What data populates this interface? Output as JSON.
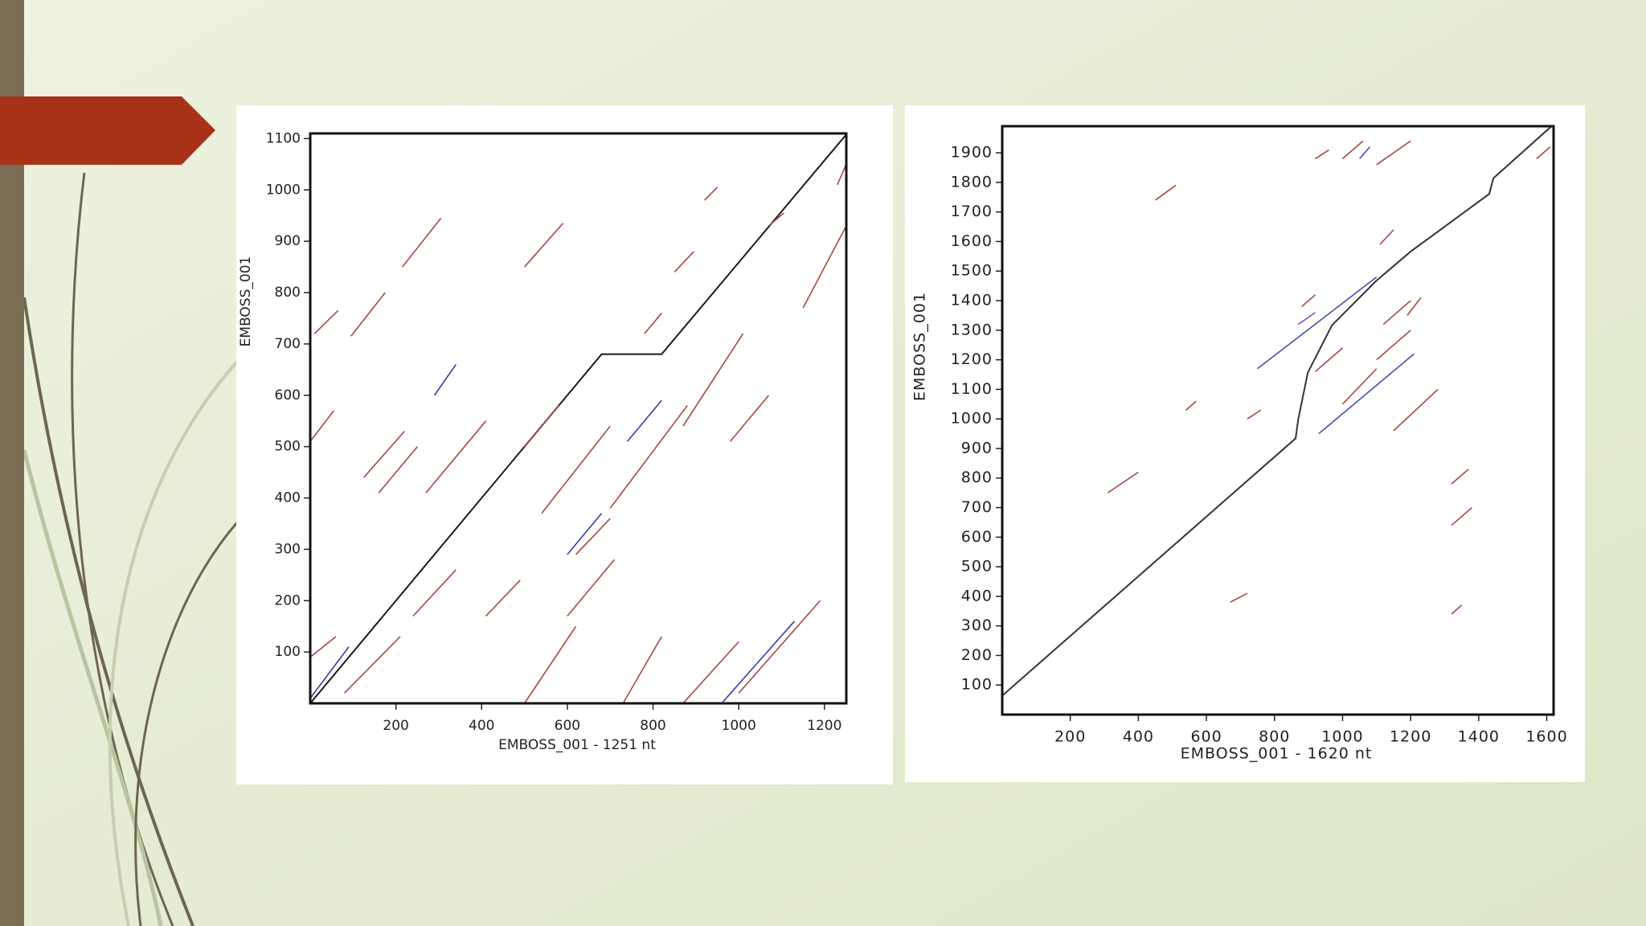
{
  "chart_data": [
    {
      "type": "line",
      "xlabel": "EMBOSS_001 - 1251 nt",
      "ylabel": "EMBOSS_001",
      "xlim": [
        0,
        1251
      ],
      "ylim": [
        0,
        1110
      ],
      "xticks": [
        200,
        400,
        600,
        800,
        1000,
        1200
      ],
      "yticks": [
        100,
        200,
        300,
        400,
        500,
        600,
        700,
        800,
        900,
        1000,
        1100
      ],
      "series": [
        {
          "color": "#1a1a1a",
          "x": [
            0,
            680,
            820,
            1251
          ],
          "values": [
            0,
            680,
            680,
            1108
          ]
        },
        {
          "color": "#a4483e",
          "x": [
            10,
            65
          ],
          "values": [
            720,
            765
          ]
        },
        {
          "color": "#a4483e",
          "x": [
            95,
            175
          ],
          "values": [
            715,
            800
          ]
        },
        {
          "color": "#a4483e",
          "x": [
            215,
            305
          ],
          "values": [
            850,
            945
          ]
        },
        {
          "color": "#a4483e",
          "x": [
            500,
            590
          ],
          "values": [
            850,
            935
          ]
        },
        {
          "color": "#a4483e",
          "x": [
            920,
            950
          ],
          "values": [
            980,
            1005
          ]
        },
        {
          "color": "#a4483e",
          "x": [
            850,
            895
          ],
          "values": [
            840,
            880
          ]
        },
        {
          "color": "#a4483e",
          "x": [
            1070,
            1105
          ],
          "values": [
            930,
            955
          ]
        },
        {
          "color": "#a4483e",
          "x": [
            1150,
            1251
          ],
          "values": [
            770,
            930
          ]
        },
        {
          "color": "#a4483e",
          "x": [
            1230,
            1251
          ],
          "values": [
            1010,
            1050
          ]
        },
        {
          "color": "#a4483e",
          "x": [
            780,
            820
          ],
          "values": [
            720,
            760
          ]
        },
        {
          "color": "#a4483e",
          "x": [
            0,
            55
          ],
          "values": [
            510,
            570
          ]
        },
        {
          "color": "#a4483e",
          "x": [
            125,
            220
          ],
          "values": [
            440,
            530
          ]
        },
        {
          "color": "#a4483e",
          "x": [
            160,
            250
          ],
          "values": [
            410,
            500
          ]
        },
        {
          "color": "#a4483e",
          "x": [
            270,
            410
          ],
          "values": [
            410,
            550
          ]
        },
        {
          "color": "#a4483e",
          "x": [
            500,
            580
          ],
          "values": [
            500,
            580
          ]
        },
        {
          "color": "#a4483e",
          "x": [
            540,
            700
          ],
          "values": [
            370,
            540
          ]
        },
        {
          "color": "#a4483e",
          "x": [
            700,
            880
          ],
          "values": [
            380,
            580
          ]
        },
        {
          "color": "#a4483e",
          "x": [
            870,
            1010
          ],
          "values": [
            540,
            720
          ]
        },
        {
          "color": "#a4483e",
          "x": [
            980,
            1070
          ],
          "values": [
            510,
            600
          ]
        },
        {
          "color": "#a4483e",
          "x": [
            620,
            700
          ],
          "values": [
            290,
            360
          ]
        },
        {
          "color": "#a4483e",
          "x": [
            240,
            340
          ],
          "values": [
            170,
            260
          ]
        },
        {
          "color": "#a4483e",
          "x": [
            410,
            490
          ],
          "values": [
            170,
            240
          ]
        },
        {
          "color": "#a4483e",
          "x": [
            600,
            710
          ],
          "values": [
            170,
            280
          ]
        },
        {
          "color": "#a4483e",
          "x": [
            500,
            620
          ],
          "values": [
            0,
            150
          ]
        },
        {
          "color": "#a4483e",
          "x": [
            730,
            820
          ],
          "values": [
            0,
            130
          ]
        },
        {
          "color": "#a4483e",
          "x": [
            870,
            1000
          ],
          "values": [
            0,
            120
          ]
        },
        {
          "color": "#a4483e",
          "x": [
            1000,
            1190
          ],
          "values": [
            20,
            200
          ]
        },
        {
          "color": "#a4483e",
          "x": [
            80,
            210
          ],
          "values": [
            20,
            130
          ]
        },
        {
          "color": "#a4483e",
          "x": [
            0,
            60
          ],
          "values": [
            90,
            130
          ]
        },
        {
          "color": "#3a3aa8",
          "x": [
            290,
            340
          ],
          "values": [
            600,
            660
          ]
        },
        {
          "color": "#3a3aa8",
          "x": [
            740,
            820
          ],
          "values": [
            510,
            590
          ]
        },
        {
          "color": "#3a3aa8",
          "x": [
            600,
            680
          ],
          "values": [
            290,
            370
          ]
        },
        {
          "color": "#3a3aa8",
          "x": [
            0,
            90
          ],
          "values": [
            10,
            110
          ]
        },
        {
          "color": "#3a3aa8",
          "x": [
            960,
            1130
          ],
          "values": [
            0,
            160
          ]
        }
      ]
    },
    {
      "type": "line",
      "xlabel": "EMBOSS_001 - 1620 nt",
      "ylabel": "EMBOSS_001",
      "xlim": [
        0,
        1620
      ],
      "ylim": [
        0,
        1990
      ],
      "xticks": [
        200,
        400,
        600,
        800,
        1000,
        1200,
        1400,
        1600
      ],
      "yticks": [
        100,
        200,
        300,
        400,
        500,
        600,
        700,
        800,
        900,
        1000,
        1100,
        1200,
        1300,
        1400,
        1500,
        1600,
        1700,
        1800,
        1900
      ],
      "series": [
        {
          "color": "#333333",
          "x": [
            0,
            862,
            870,
            898,
            969,
            1098,
            1200,
            1431,
            1443,
            1615
          ],
          "values": [
            64,
            934,
            1000,
            1157,
            1317,
            1466,
            1566,
            1761,
            1814,
            1991
          ]
        },
        {
          "color": "#a4483e",
          "x": [
            450,
            510
          ],
          "values": [
            1740,
            1790
          ]
        },
        {
          "color": "#a4483e",
          "x": [
            920,
            960
          ],
          "values": [
            1880,
            1910
          ]
        },
        {
          "color": "#a4483e",
          "x": [
            1000,
            1060
          ],
          "values": [
            1880,
            1940
          ]
        },
        {
          "color": "#a4483e",
          "x": [
            1100,
            1200
          ],
          "values": [
            1860,
            1940
          ]
        },
        {
          "color": "#a4483e",
          "x": [
            1570,
            1610
          ],
          "values": [
            1880,
            1920
          ]
        },
        {
          "color": "#a4483e",
          "x": [
            310,
            400
          ],
          "values": [
            750,
            820
          ]
        },
        {
          "color": "#a4483e",
          "x": [
            670,
            720
          ],
          "values": [
            380,
            410
          ]
        },
        {
          "color": "#a4483e",
          "x": [
            1320,
            1380
          ],
          "values": [
            640,
            700
          ]
        },
        {
          "color": "#a4483e",
          "x": [
            1320,
            1370
          ],
          "values": [
            780,
            830
          ]
        },
        {
          "color": "#a4483e",
          "x": [
            1320,
            1350
          ],
          "values": [
            340,
            370
          ]
        },
        {
          "color": "#a4483e",
          "x": [
            1110,
            1150
          ],
          "values": [
            1590,
            1640
          ]
        },
        {
          "color": "#a4483e",
          "x": [
            880,
            920
          ],
          "values": [
            1380,
            1420
          ]
        },
        {
          "color": "#a4483e",
          "x": [
            920,
            1000
          ],
          "values": [
            1160,
            1240
          ]
        },
        {
          "color": "#a4483e",
          "x": [
            1000,
            1100
          ],
          "values": [
            1050,
            1170
          ]
        },
        {
          "color": "#a4483e",
          "x": [
            1100,
            1200
          ],
          "values": [
            1200,
            1300
          ]
        },
        {
          "color": "#a4483e",
          "x": [
            1150,
            1280
          ],
          "values": [
            960,
            1100
          ]
        },
        {
          "color": "#a4483e",
          "x": [
            1190,
            1230
          ],
          "values": [
            1350,
            1410
          ]
        },
        {
          "color": "#a4483e",
          "x": [
            1120,
            1200
          ],
          "values": [
            1320,
            1400
          ]
        },
        {
          "color": "#a4483e",
          "x": [
            720,
            760
          ],
          "values": [
            1000,
            1030
          ]
        },
        {
          "color": "#a4483e",
          "x": [
            540,
            570
          ],
          "values": [
            1030,
            1060
          ]
        },
        {
          "color": "#4a4ab0",
          "x": [
            750,
            1100
          ],
          "values": [
            1170,
            1480
          ]
        },
        {
          "color": "#4a4ab0",
          "x": [
            930,
            1210
          ],
          "values": [
            950,
            1220
          ]
        },
        {
          "color": "#4a4ab0",
          "x": [
            1050,
            1080
          ],
          "values": [
            1880,
            1920
          ]
        },
        {
          "color": "#8a4aa8",
          "x": [
            870,
            920
          ],
          "values": [
            1320,
            1360
          ]
        }
      ]
    }
  ]
}
